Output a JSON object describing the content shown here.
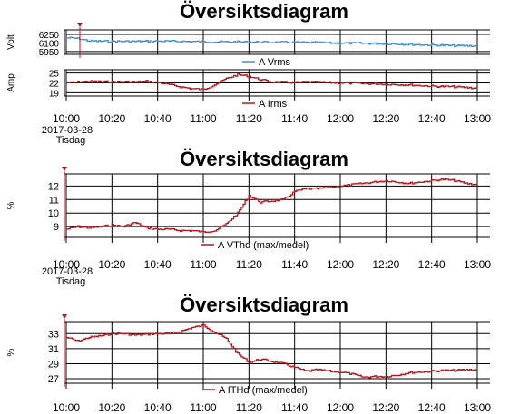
{
  "colors": {
    "volt_series": "#3a8fd6",
    "amp_series": "#b8141a",
    "vthd_series": "#b8141a",
    "ithd_series": "#b8141a",
    "marker": "#b8141a",
    "grid": "#000000"
  },
  "chart_data": [
    {
      "type": "line",
      "title": "Översiktsdiagram",
      "ylabel": "Volt",
      "yticks": [
        6250,
        6100,
        5950
      ],
      "ylim": [
        5900,
        6330
      ],
      "series": [
        {
          "name": "A Vrms",
          "x": [
            "10:00",
            "10:05",
            "10:10",
            "10:15",
            "10:20",
            "10:25",
            "10:30",
            "10:35",
            "10:40",
            "10:45",
            "10:50",
            "10:55",
            "11:00",
            "11:05",
            "11:10",
            "11:15",
            "11:20",
            "11:25",
            "11:30",
            "11:35",
            "11:40",
            "11:45",
            "11:50",
            "11:55",
            "12:00",
            "12:05",
            "12:10",
            "12:15",
            "12:20",
            "12:25",
            "12:30",
            "12:35",
            "12:40",
            "12:45",
            "12:50",
            "12:55",
            "13:00"
          ],
          "values": [
            6190,
            6180,
            6135,
            6130,
            6130,
            6128,
            6128,
            6130,
            6132,
            6130,
            6128,
            6125,
            6122,
            6120,
            6118,
            6118,
            6116,
            6115,
            6112,
            6112,
            6110,
            6108,
            6106,
            6100,
            6098,
            6096,
            6094,
            6090,
            6088,
            6082,
            6075,
            6070,
            6062,
            6058,
            6050,
            6050,
            6048
          ]
        }
      ]
    },
    {
      "type": "line",
      "ylabel": "Amp",
      "yticks": [
        25,
        22,
        19
      ],
      "ylim": [
        18,
        26
      ],
      "series": [
        {
          "name": "A Irms",
          "x": [
            "10:00",
            "10:05",
            "10:10",
            "10:15",
            "10:20",
            "10:25",
            "10:30",
            "10:35",
            "10:40",
            "10:45",
            "10:50",
            "10:55",
            "11:00",
            "11:05",
            "11:10",
            "11:15",
            "11:20",
            "11:25",
            "11:30",
            "11:35",
            "11:40",
            "11:45",
            "11:50",
            "11:55",
            "12:00",
            "12:05",
            "12:10",
            "12:15",
            "12:20",
            "12:25",
            "12:30",
            "12:35",
            "12:40",
            "12:45",
            "12:50",
            "12:55",
            "13:00"
          ],
          "values": [
            22.0,
            22.3,
            22.5,
            22.4,
            22.3,
            22.4,
            22.3,
            22.5,
            22.1,
            21.5,
            20.8,
            20.2,
            20.0,
            21.5,
            23.3,
            24.5,
            24.0,
            23.0,
            22.3,
            22.2,
            22.1,
            22.3,
            22.2,
            22.1,
            22.0,
            21.9,
            21.8,
            21.7,
            21.6,
            21.5,
            21.4,
            21.2,
            21.0,
            20.9,
            20.8,
            20.6,
            20.4
          ]
        }
      ]
    },
    {
      "type": "line",
      "title": "Översiktsdiagram",
      "ylabel": "%",
      "yticks": [
        12,
        11,
        10,
        9
      ],
      "ylim": [
        8.2,
        12.9
      ],
      "series": [
        {
          "name": "A VThd (max/medel)",
          "x": [
            "10:00",
            "10:05",
            "10:10",
            "10:15",
            "10:20",
            "10:25",
            "10:30",
            "10:35",
            "10:40",
            "10:45",
            "10:50",
            "10:55",
            "11:00",
            "11:05",
            "11:10",
            "11:15",
            "11:20",
            "11:25",
            "11:30",
            "11:35",
            "11:40",
            "11:45",
            "11:50",
            "11:55",
            "12:00",
            "12:05",
            "12:10",
            "12:15",
            "12:20",
            "12:25",
            "12:30",
            "12:35",
            "12:40",
            "12:45",
            "12:50",
            "12:55",
            "13:00"
          ],
          "values": [
            8.8,
            9.0,
            8.9,
            9.0,
            9.1,
            9.0,
            9.3,
            8.9,
            8.8,
            8.8,
            8.7,
            8.7,
            8.6,
            8.7,
            9.2,
            10.0,
            11.3,
            10.8,
            10.9,
            11.0,
            11.6,
            11.8,
            11.8,
            11.9,
            12.0,
            12.1,
            12.2,
            12.3,
            12.4,
            12.3,
            12.2,
            12.3,
            12.4,
            12.5,
            12.4,
            12.2,
            12.1
          ]
        }
      ]
    },
    {
      "type": "line",
      "title": "Översiktsdiagram",
      "ylabel": "%",
      "yticks": [
        33,
        31,
        29,
        27
      ],
      "ylim": [
        26.4,
        34.6
      ],
      "series": [
        {
          "name": "A ITHd (max/medel)",
          "x": [
            "10:00",
            "10:05",
            "10:10",
            "10:15",
            "10:20",
            "10:25",
            "10:30",
            "10:35",
            "10:40",
            "10:45",
            "10:50",
            "10:55",
            "11:00",
            "11:05",
            "11:10",
            "11:15",
            "11:20",
            "11:25",
            "11:30",
            "11:35",
            "11:40",
            "11:45",
            "11:50",
            "11:55",
            "12:00",
            "12:05",
            "12:10",
            "12:15",
            "12:20",
            "12:25",
            "12:30",
            "12:35",
            "12:40",
            "12:45",
            "12:50",
            "12:55",
            "13:00"
          ],
          "values": [
            32.5,
            32.0,
            32.5,
            32.7,
            33.0,
            33.0,
            32.8,
            32.9,
            33.0,
            33.0,
            33.3,
            33.8,
            34.1,
            33.2,
            32.3,
            30.3,
            29.2,
            29.6,
            29.3,
            29.0,
            28.5,
            28.0,
            28.2,
            28.0,
            27.9,
            27.6,
            27.2,
            27.3,
            27.3,
            27.5,
            27.8,
            27.9,
            28.0,
            28.1,
            28.1,
            28.2,
            28.2
          ]
        }
      ]
    }
  ],
  "time_axis": {
    "ticks": [
      "10:00",
      "10:20",
      "10:40",
      "11:00",
      "11:20",
      "11:40",
      "12:00",
      "12:20",
      "12:40",
      "13:00"
    ],
    "date": "2017-03-28",
    "weekday": "Tisdag"
  }
}
